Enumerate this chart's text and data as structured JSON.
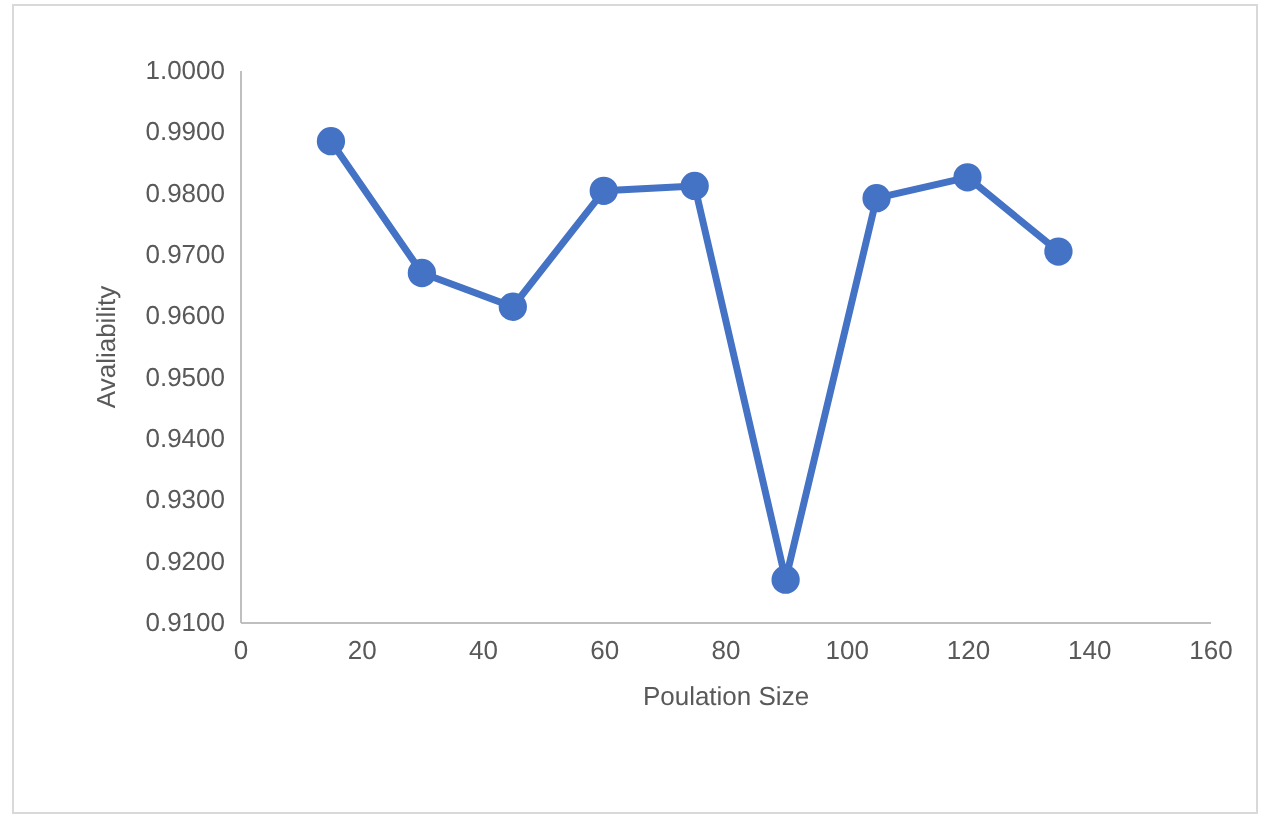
{
  "chart_data": {
    "type": "line",
    "xlabel": "Poulation Size",
    "ylabel": "Avaliability",
    "x": [
      15,
      30,
      45,
      60,
      75,
      90,
      105,
      120,
      135
    ],
    "series": [
      {
        "color": "#4472c4",
        "values": [
          0.9884,
          0.9669,
          0.9614,
          0.9803,
          0.9811,
          0.9169,
          0.9791,
          0.9825,
          0.9704
        ]
      }
    ],
    "xlim": [
      0,
      160
    ],
    "xticks": [
      0,
      20,
      40,
      60,
      80,
      100,
      120,
      140,
      160
    ],
    "ylim": [
      0.91,
      1.0
    ],
    "yticks": [
      {
        "value": 0.91,
        "label": "0.9100"
      },
      {
        "value": 0.92,
        "label": "0.9200"
      },
      {
        "value": 0.93,
        "label": "0.9300"
      },
      {
        "value": 0.94,
        "label": "0.9400"
      },
      {
        "value": 0.95,
        "label": "0.9500"
      },
      {
        "value": 0.96,
        "label": "0.9600"
      },
      {
        "value": 0.97,
        "label": "0.9700"
      },
      {
        "value": 0.98,
        "label": "0.9800"
      },
      {
        "value": 0.99,
        "label": "0.9900"
      },
      {
        "value": 1.0,
        "label": "1.0000"
      }
    ],
    "grid": false,
    "marker": "circle",
    "line_style": "solid",
    "legend": false
  }
}
